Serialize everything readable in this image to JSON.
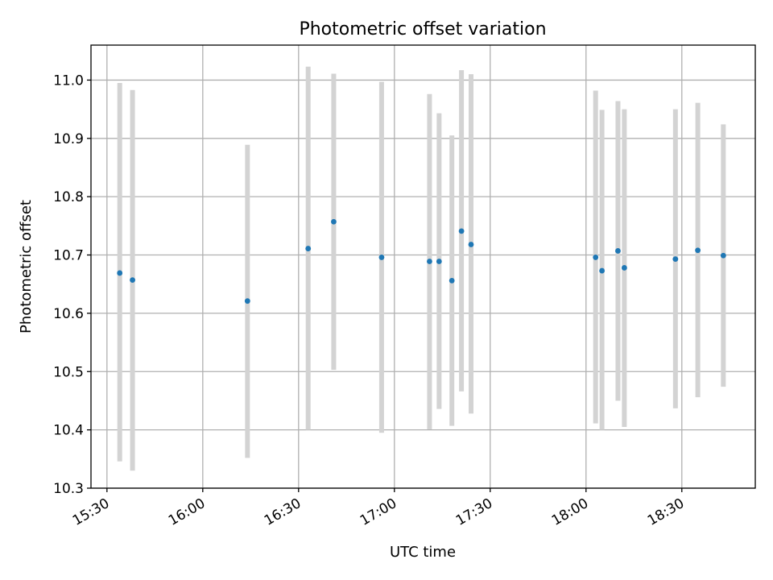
{
  "chart_data": {
    "type": "scatter",
    "title": "Photometric offset variation",
    "xlabel": "UTC time",
    "ylabel": "Photometric offset",
    "x_axis": {
      "unit": "UTC time (HH:MM)",
      "range": [
        "15:25",
        "18:53"
      ],
      "ticks": [
        "15:30",
        "16:00",
        "16:30",
        "17:00",
        "17:30",
        "18:00",
        "18:30"
      ]
    },
    "y_axis": {
      "range": [
        10.3,
        11.06
      ],
      "ticks": [
        "10.3",
        "10.4",
        "10.5",
        "10.6",
        "10.7",
        "10.8",
        "10.9",
        "11.0"
      ]
    },
    "grid": true,
    "colors": {
      "point": "#1f77b4",
      "errorbar": "#d3d3d3"
    },
    "series": [
      {
        "points": [
          {
            "x": "15:34",
            "y": 10.669,
            "ymin": 10.346,
            "ymax": 10.995
          },
          {
            "x": "15:38",
            "y": 10.657,
            "ymin": 10.33,
            "ymax": 10.983
          },
          {
            "x": "16:14",
            "y": 10.621,
            "ymin": 10.352,
            "ymax": 10.889
          },
          {
            "x": "16:33",
            "y": 10.711,
            "ymin": 10.4,
            "ymax": 11.023
          },
          {
            "x": "16:41",
            "y": 10.757,
            "ymin": 10.503,
            "ymax": 11.011
          },
          {
            "x": "16:56",
            "y": 10.696,
            "ymin": 10.395,
            "ymax": 10.997
          },
          {
            "x": "17:11",
            "y": 10.689,
            "ymin": 10.401,
            "ymax": 10.976
          },
          {
            "x": "17:14",
            "y": 10.689,
            "ymin": 10.436,
            "ymax": 10.943
          },
          {
            "x": "17:18",
            "y": 10.656,
            "ymin": 10.407,
            "ymax": 10.905
          },
          {
            "x": "17:21",
            "y": 10.741,
            "ymin": 10.466,
            "ymax": 11.017
          },
          {
            "x": "17:24",
            "y": 10.718,
            "ymin": 10.428,
            "ymax": 11.01
          },
          {
            "x": "18:03",
            "y": 10.696,
            "ymin": 10.411,
            "ymax": 10.982
          },
          {
            "x": "18:05",
            "y": 10.673,
            "ymin": 10.4,
            "ymax": 10.949
          },
          {
            "x": "18:10",
            "y": 10.707,
            "ymin": 10.45,
            "ymax": 10.964
          },
          {
            "x": "18:12",
            "y": 10.678,
            "ymin": 10.405,
            "ymax": 10.95
          },
          {
            "x": "18:28",
            "y": 10.693,
            "ymin": 10.437,
            "ymax": 10.95
          },
          {
            "x": "18:35",
            "y": 10.708,
            "ymin": 10.456,
            "ymax": 10.961
          },
          {
            "x": "18:43",
            "y": 10.699,
            "ymin": 10.474,
            "ymax": 10.924
          }
        ]
      }
    ]
  }
}
